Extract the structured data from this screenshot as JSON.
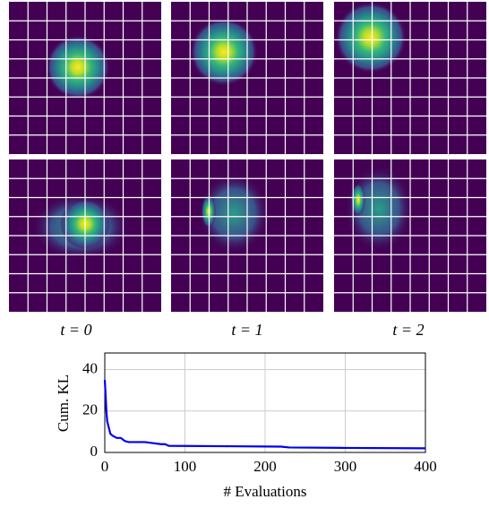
{
  "panel_labels": [
    "t = 0",
    "t = 1",
    "t = 2"
  ],
  "chart_data": {
    "type": "line",
    "x_label": "# Evaluations",
    "y_label": "Cum. KL",
    "x": [
      0,
      1,
      2,
      3,
      5,
      7,
      10,
      15,
      20,
      25,
      30,
      50,
      60,
      70,
      75,
      80,
      150,
      220,
      230,
      300,
      400
    ],
    "values": [
      35,
      28,
      20,
      15,
      12,
      9,
      8,
      7,
      7,
      5.5,
      5,
      5,
      4.5,
      4,
      4,
      3.2,
      3,
      2.8,
      2.4,
      2.2,
      2
    ],
    "color": "#0000ee",
    "xlim": [
      0,
      400
    ],
    "ylim": [
      0,
      48
    ],
    "xticks": [
      0,
      100,
      200,
      300,
      400
    ],
    "yticks": [
      0,
      20,
      40
    ],
    "grid": true
  }
}
